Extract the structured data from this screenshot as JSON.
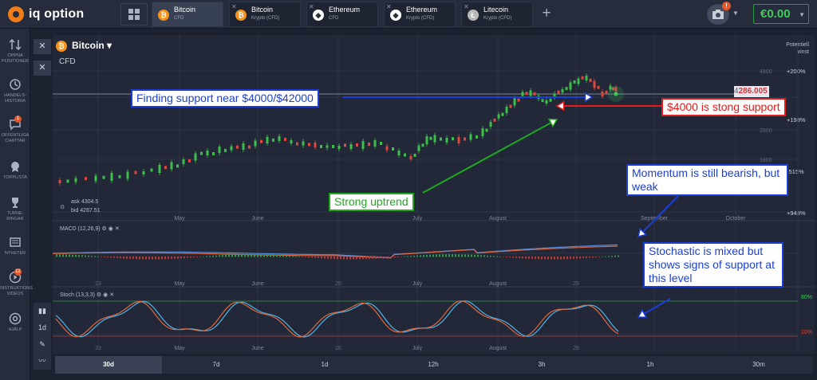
{
  "app": {
    "brand": "iq option",
    "balance": "€0.00",
    "camera_badge": "!"
  },
  "tabs": [
    {
      "name": "Bitcoin",
      "sub": "CFD",
      "icon": "bitcoin-icon",
      "active": true
    },
    {
      "name": "Bitcoin",
      "sub": "Krypto (CFD)",
      "icon": "bitcoin-icon",
      "active": false
    },
    {
      "name": "Ethereum",
      "sub": "CFD",
      "icon": "ethereum-icon",
      "active": false
    },
    {
      "name": "Ethereum",
      "sub": "Krypto (CFD)",
      "icon": "ethereum-icon",
      "active": false
    },
    {
      "name": "Litecoin",
      "sub": "Krypto (CFD)",
      "icon": "litecoin-icon",
      "active": false
    }
  ],
  "sidebar": [
    {
      "label": "ÖPPNA POSITIONER",
      "icon": "arrows-icon"
    },
    {
      "label": "HANDELS-HISTORIA",
      "icon": "history-icon"
    },
    {
      "label": "OFFENTLIGA CHATTAR",
      "icon": "chat-icon",
      "badge": "1"
    },
    {
      "label": "TOPPLISTA",
      "icon": "medal-icon"
    },
    {
      "label": "TURNE-RINGAR",
      "icon": "trophy-icon"
    },
    {
      "label": "NYHETER",
      "icon": "news-icon"
    },
    {
      "label": "INSTRUKTIONS VIDEOS",
      "icon": "play-icon",
      "badge": "12"
    },
    {
      "label": "HJÄLP",
      "icon": "help-icon"
    }
  ],
  "asset": {
    "name": "Bitcoin",
    "type": "CFD",
    "ask": "ask 4304.5",
    "bid": "bid 4267.51",
    "potential_label": "Potentiell vinst",
    "price_prefix": "4",
    "price_value": "286.005"
  },
  "axis": {
    "month_labels": [
      "May",
      "June",
      "July",
      "August",
      "September",
      "October"
    ],
    "day_labels": [
      "23",
      "26",
      "29"
    ],
    "price_scale": [
      "4800",
      "3800",
      "2800",
      "1800"
    ],
    "profit_scale": [
      "+200%",
      "+198%",
      "-515%",
      "+948%"
    ]
  },
  "indicators": {
    "macd": "MACD (12,26,9)",
    "stoch": "Stoch (13,3,3)",
    "stoch_high": "80%",
    "stoch_low": "20%"
  },
  "timeframes": [
    "30d",
    "7d",
    "1d",
    "12h",
    "3h",
    "1h",
    "30m"
  ],
  "tools": {
    "interval": "1d"
  },
  "annotations": {
    "support_near": "Finding support near $4000/$42000",
    "stong_support": "$4000 is stong support",
    "uptrend": "Strong uptrend",
    "momentum": "Momentum is still bearish, but weak",
    "stochastic": "Stochastic is mixed but shows signs of support at this level"
  },
  "colors": {
    "accent_orange": "#f07d1a",
    "balance_green": "#3fce57",
    "candle_up": "#3cbf4a",
    "candle_down": "#e0473d",
    "annotation_blue": "#1b3ed8",
    "annotation_red": "#e81a1a",
    "annotation_green": "#1fa81f"
  }
}
